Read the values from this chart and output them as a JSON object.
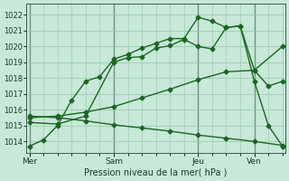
{
  "bg_color": "#c8e8d8",
  "grid_color": "#90c8a8",
  "line_color": "#1a6622",
  "xlabel": "Pression niveau de la mer( hPa )",
  "ylim": [
    1013.3,
    1022.7
  ],
  "yticks": [
    1014,
    1015,
    1016,
    1017,
    1018,
    1019,
    1020,
    1021,
    1022
  ],
  "xlim": [
    -0.1,
    9.1
  ],
  "vline_x": [
    0,
    3,
    6,
    8
  ],
  "xtick_positions": [
    0,
    3,
    6,
    8
  ],
  "xtick_labels": [
    "Mer",
    "Sam",
    "Jeu",
    "Ven"
  ],
  "series": [
    {
      "x": [
        0,
        0.5,
        1,
        1.5,
        2,
        2.5,
        3,
        3.5,
        4,
        4.5,
        5,
        5.5,
        6,
        6.5,
        7,
        7.5,
        8,
        8.5,
        9
      ],
      "y": [
        1013.7,
        1014.1,
        1015.0,
        1016.6,
        1017.8,
        1018.1,
        1019.2,
        1019.5,
        1019.9,
        1020.2,
        1020.5,
        1020.5,
        1021.85,
        1021.6,
        1021.2,
        1021.3,
        1017.8,
        1015.0,
        1013.7
      ],
      "lw": 1.0,
      "ms": 2.5
    },
    {
      "x": [
        0,
        1,
        2,
        3,
        3.5,
        4,
        4.5,
        5,
        5.5,
        6,
        6.5,
        7,
        7.5,
        8,
        8.5,
        9
      ],
      "y": [
        1015.2,
        1015.1,
        1015.6,
        1019.0,
        1019.3,
        1019.35,
        1019.9,
        1020.05,
        1020.45,
        1020.0,
        1019.85,
        1021.2,
        1021.3,
        1018.5,
        1017.5,
        1017.8
      ],
      "lw": 1.0,
      "ms": 2.5
    },
    {
      "x": [
        0,
        1,
        2,
        3,
        4,
        5,
        6,
        7,
        8,
        9
      ],
      "y": [
        1015.5,
        1015.6,
        1015.85,
        1016.2,
        1016.75,
        1017.3,
        1017.9,
        1018.4,
        1018.5,
        1020.0
      ],
      "lw": 1.0,
      "ms": 2.5
    },
    {
      "x": [
        0,
        1,
        2,
        3,
        4,
        5,
        6,
        7,
        8,
        9
      ],
      "y": [
        1015.6,
        1015.5,
        1015.3,
        1015.05,
        1014.85,
        1014.65,
        1014.4,
        1014.2,
        1014.0,
        1013.75
      ],
      "lw": 1.0,
      "ms": 2.5
    }
  ]
}
